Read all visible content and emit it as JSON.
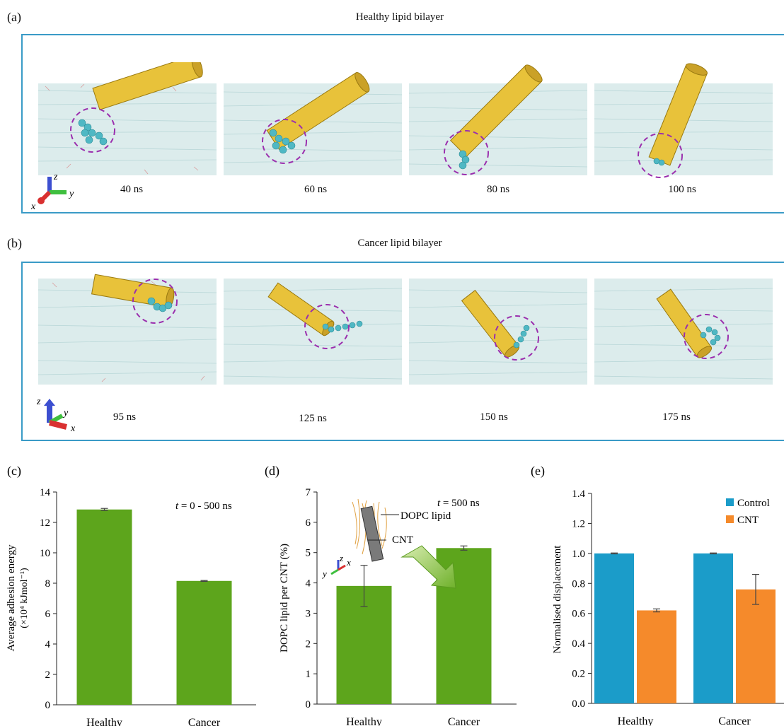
{
  "panel_a": {
    "label": "(a)",
    "title": "Healthy lipid bilayer",
    "times": [
      "40 ns",
      "60 ns",
      "80 ns",
      "100 ns"
    ],
    "axes": {
      "z": "z",
      "y": "y",
      "x": "x"
    }
  },
  "panel_b": {
    "label": "(b)",
    "title": "Cancer lipid bilayer",
    "times": [
      "95 ns",
      "125 ns",
      "150 ns",
      "175 ns"
    ],
    "axes": {
      "z": "z",
      "y": "y",
      "x": "x"
    }
  },
  "chart_data": [
    {
      "panel": "(c)",
      "type": "bar",
      "categories": [
        "Healthy",
        "Cancer"
      ],
      "values": [
        12.85,
        8.15
      ],
      "errors": [
        0.07,
        0.03
      ],
      "ylabel_line1": "Average adhesion energy",
      "ylabel_line2": "(×10⁴ kJmol⁻¹)",
      "ylim": [
        0,
        14
      ],
      "yticks": [
        "0",
        "2",
        "4",
        "6",
        "8",
        "10",
        "12",
        "14"
      ],
      "annotation": "t = 0 - 500 ns",
      "color": "#5da51c"
    },
    {
      "panel": "(d)",
      "type": "bar",
      "categories": [
        "Healthy",
        "Cancer"
      ],
      "values": [
        3.9,
        5.15
      ],
      "errors": [
        0.68,
        0.07
      ],
      "ylabel": "DOPC lipid per CNT (%)",
      "ylim": [
        0,
        7
      ],
      "yticks": [
        "0",
        "1",
        "2",
        "3",
        "4",
        "5",
        "6",
        "7"
      ],
      "annotation": "t = 500 ns",
      "inset_labels": [
        "DOPC lipid",
        "CNT"
      ],
      "inset_axes": {
        "z": "z",
        "y": "y",
        "x": "x"
      },
      "color": "#5da51c"
    },
    {
      "panel": "(e)",
      "type": "bar",
      "categories": [
        "Healthy",
        "Cancer"
      ],
      "series": [
        {
          "name": "Control",
          "values": [
            1.0,
            1.0
          ],
          "errors": [
            0.003,
            0.003
          ],
          "color": "#1b9cc9"
        },
        {
          "name": "CNT",
          "values": [
            0.62,
            0.76
          ],
          "errors": [
            0.01,
            0.1
          ],
          "color": "#f58a2b"
        }
      ],
      "ylabel": "Normalised displacement",
      "ylim": [
        0,
        1.4
      ],
      "yticks": [
        "0.0",
        "0.2",
        "0.4",
        "0.6",
        "0.8",
        "1.0",
        "1.2",
        "1.4"
      ],
      "legend_position": "top-right"
    }
  ]
}
